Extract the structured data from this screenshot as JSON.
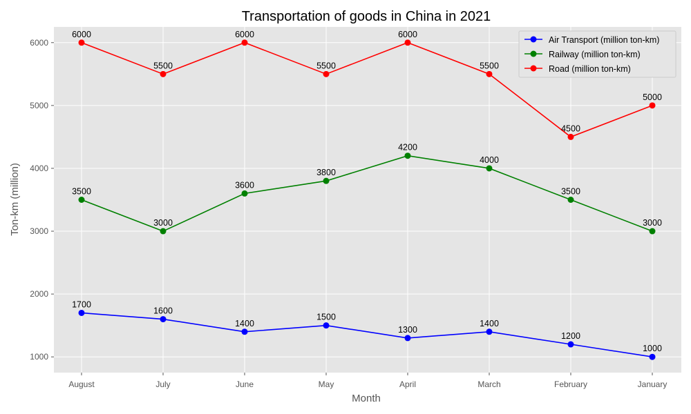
{
  "chart_data": {
    "type": "line",
    "title": "Transportation of goods in China in 2021",
    "xlabel": "Month",
    "ylabel": "Ton-km (million)",
    "categories": [
      "August",
      "July",
      "June",
      "May",
      "April",
      "March",
      "February",
      "January"
    ],
    "ylim": [
      750,
      6250
    ],
    "yticks": [
      1000,
      2000,
      3000,
      4000,
      5000,
      6000
    ],
    "grid": true,
    "legend_position": "top-right",
    "series": [
      {
        "name": "Air Transport (million ton-km)",
        "color": "#0000ff",
        "values": [
          1700,
          1600,
          1400,
          1500,
          1300,
          1400,
          1200,
          1000
        ]
      },
      {
        "name": "Railway (million ton-km)",
        "color": "#008000",
        "values": [
          3500,
          3000,
          3600,
          3800,
          4200,
          4000,
          3500,
          3000
        ]
      },
      {
        "name": "Road (million ton-km)",
        "color": "#ff0000",
        "values": [
          6000,
          5500,
          6000,
          5500,
          6000,
          5500,
          4500,
          5000
        ]
      }
    ]
  }
}
